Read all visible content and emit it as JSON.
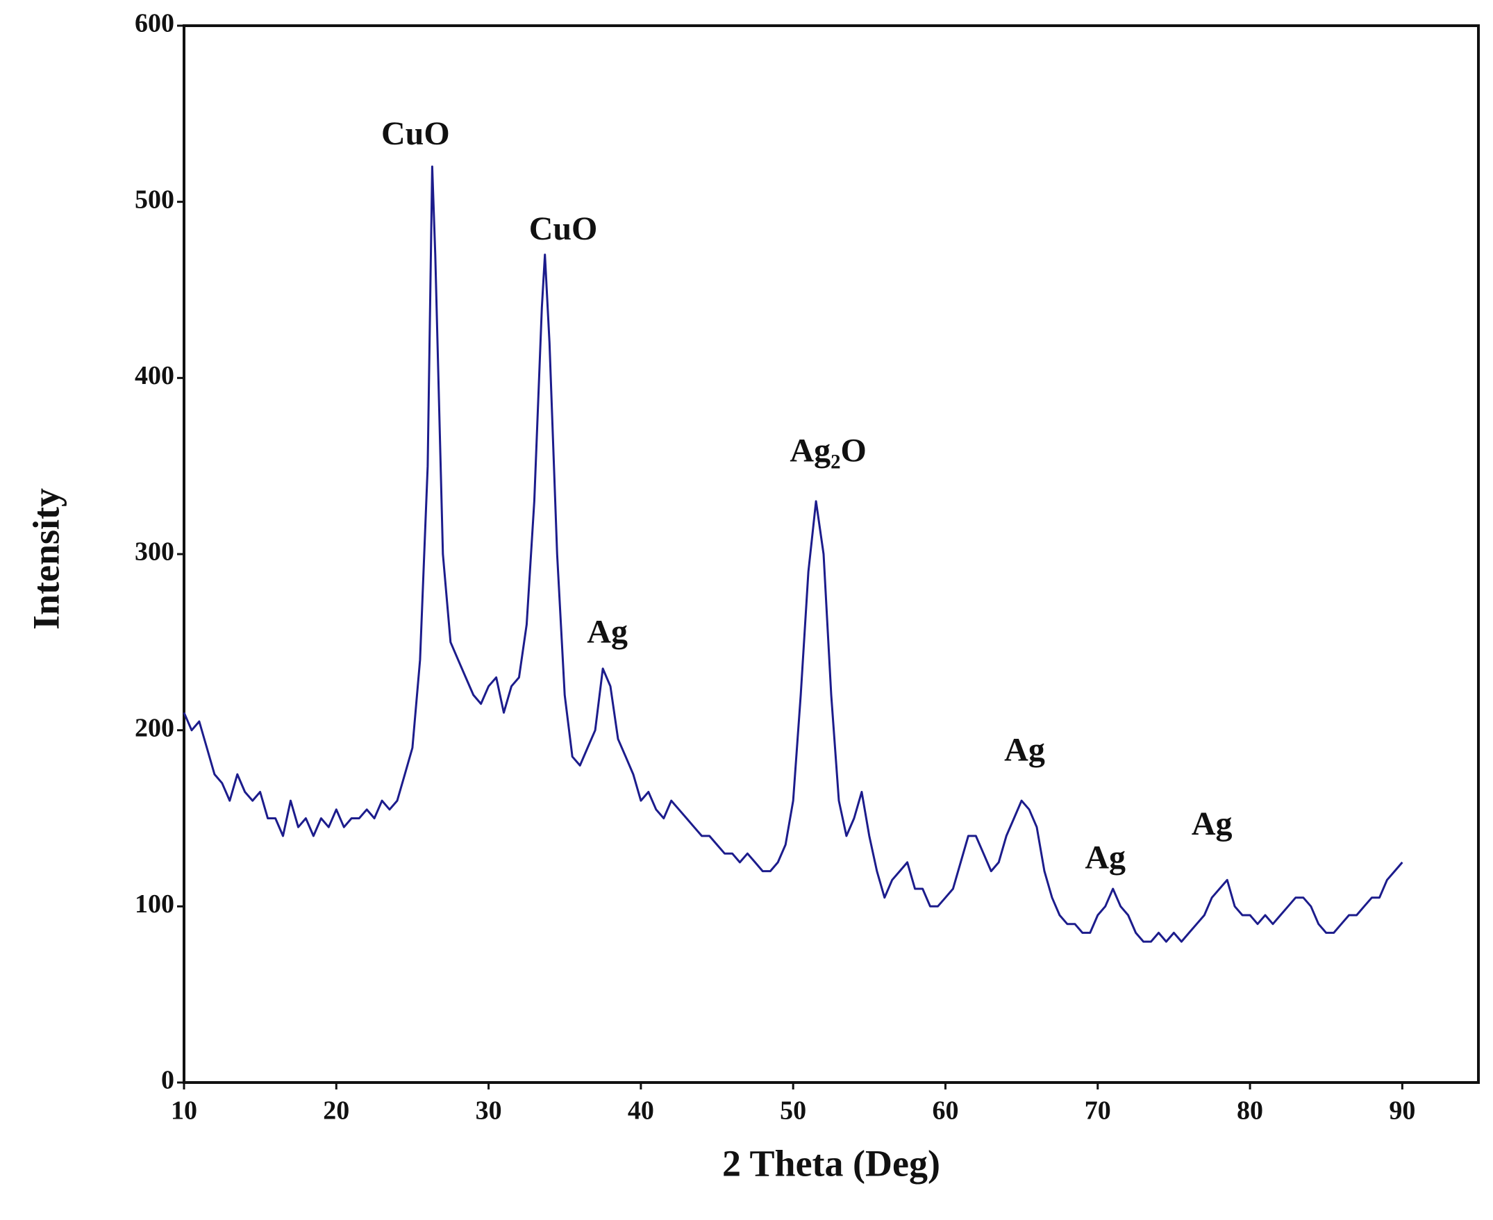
{
  "chart_data": {
    "type": "line",
    "xlabel": "2 Theta (Deg)",
    "ylabel": "Intensity",
    "color": "#1c1c8c",
    "xlim": [
      10,
      95
    ],
    "ylim": [
      0,
      600
    ],
    "xticks": [
      10,
      20,
      30,
      40,
      50,
      60,
      70,
      80,
      90
    ],
    "yticks": [
      0,
      100,
      200,
      300,
      400,
      500,
      600
    ],
    "grid": false,
    "x": [
      10,
      10.5,
      11,
      11.5,
      12,
      12.5,
      13,
      13.5,
      14,
      14.5,
      15,
      15.5,
      16,
      16.5,
      17,
      17.5,
      18,
      18.5,
      19,
      19.5,
      20,
      20.5,
      21,
      21.5,
      22,
      22.5,
      23,
      23.5,
      24,
      24.5,
      25,
      25.5,
      26,
      26.3,
      26.5,
      27,
      27.5,
      28,
      28.5,
      29,
      29.5,
      30,
      30.5,
      31,
      31.5,
      32,
      32.5,
      33,
      33.5,
      33.7,
      34,
      34.5,
      35,
      35.5,
      36,
      36.5,
      37,
      37.5,
      38,
      38.5,
      39,
      39.5,
      40,
      40.5,
      41,
      41.5,
      42,
      42.5,
      43,
      43.5,
      44,
      44.5,
      45,
      45.5,
      46,
      46.5,
      47,
      47.5,
      48,
      48.5,
      49,
      49.5,
      50,
      50.5,
      51,
      51.5,
      52,
      52.5,
      53,
      53.5,
      54,
      54.5,
      55,
      55.5,
      56,
      56.5,
      57,
      57.5,
      58,
      58.5,
      59,
      59.5,
      60,
      60.5,
      61,
      61.5,
      62,
      62.5,
      63,
      63.5,
      64,
      64.5,
      65,
      65.5,
      66,
      66.5,
      67,
      67.5,
      68,
      68.5,
      69,
      69.5,
      70,
      70.5,
      71,
      71.5,
      72,
      72.5,
      73,
      73.5,
      74,
      74.5,
      75,
      75.5,
      76,
      76.5,
      77,
      77.5,
      78,
      78.5,
      79,
      79.5,
      80,
      80.5,
      81,
      81.5,
      82,
      82.5,
      83,
      83.5,
      84,
      84.5,
      85,
      85.5,
      86,
      86.5,
      87,
      87.5,
      88,
      88.5,
      89,
      89.5,
      90
    ],
    "values": [
      210,
      200,
      205,
      190,
      175,
      170,
      160,
      175,
      165,
      160,
      165,
      150,
      150,
      140,
      160,
      145,
      150,
      140,
      150,
      145,
      155,
      145,
      150,
      150,
      155,
      150,
      160,
      155,
      160,
      175,
      190,
      240,
      350,
      520,
      470,
      300,
      250,
      240,
      230,
      220,
      215,
      225,
      230,
      210,
      225,
      230,
      260,
      330,
      440,
      470,
      420,
      300,
      220,
      185,
      180,
      190,
      200,
      235,
      225,
      195,
      185,
      175,
      160,
      165,
      155,
      150,
      160,
      155,
      150,
      145,
      140,
      140,
      135,
      130,
      130,
      125,
      130,
      125,
      120,
      120,
      125,
      135,
      160,
      220,
      290,
      330,
      300,
      220,
      160,
      140,
      150,
      165,
      140,
      120,
      105,
      115,
      120,
      125,
      110,
      110,
      100,
      100,
      105,
      110,
      125,
      140,
      140,
      130,
      120,
      125,
      140,
      150,
      160,
      155,
      145,
      120,
      105,
      95,
      90,
      90,
      85,
      85,
      95,
      100,
      110,
      100,
      95,
      85,
      80,
      80,
      85,
      80,
      85,
      80,
      85,
      90,
      95,
      105,
      110,
      115,
      100,
      95,
      95,
      90,
      95,
      90,
      95,
      100,
      105,
      105,
      100,
      90,
      85,
      85,
      90,
      95,
      95,
      100,
      105,
      105,
      115,
      120,
      125
    ],
    "annotations": [
      {
        "text": "CuO",
        "x": 25.2,
        "y": 537
      },
      {
        "text": "CuO",
        "x": 34.9,
        "y": 483
      },
      {
        "text": "Ag",
        "x": 37.8,
        "y": 254
      },
      {
        "text": "Ag₂O",
        "x": 52.3,
        "y": 357
      },
      {
        "text": "Ag",
        "x": 65.2,
        "y": 187
      },
      {
        "text": "Ag",
        "x": 70.5,
        "y": 126
      },
      {
        "text": "Ag",
        "x": 77.5,
        "y": 145
      }
    ]
  }
}
